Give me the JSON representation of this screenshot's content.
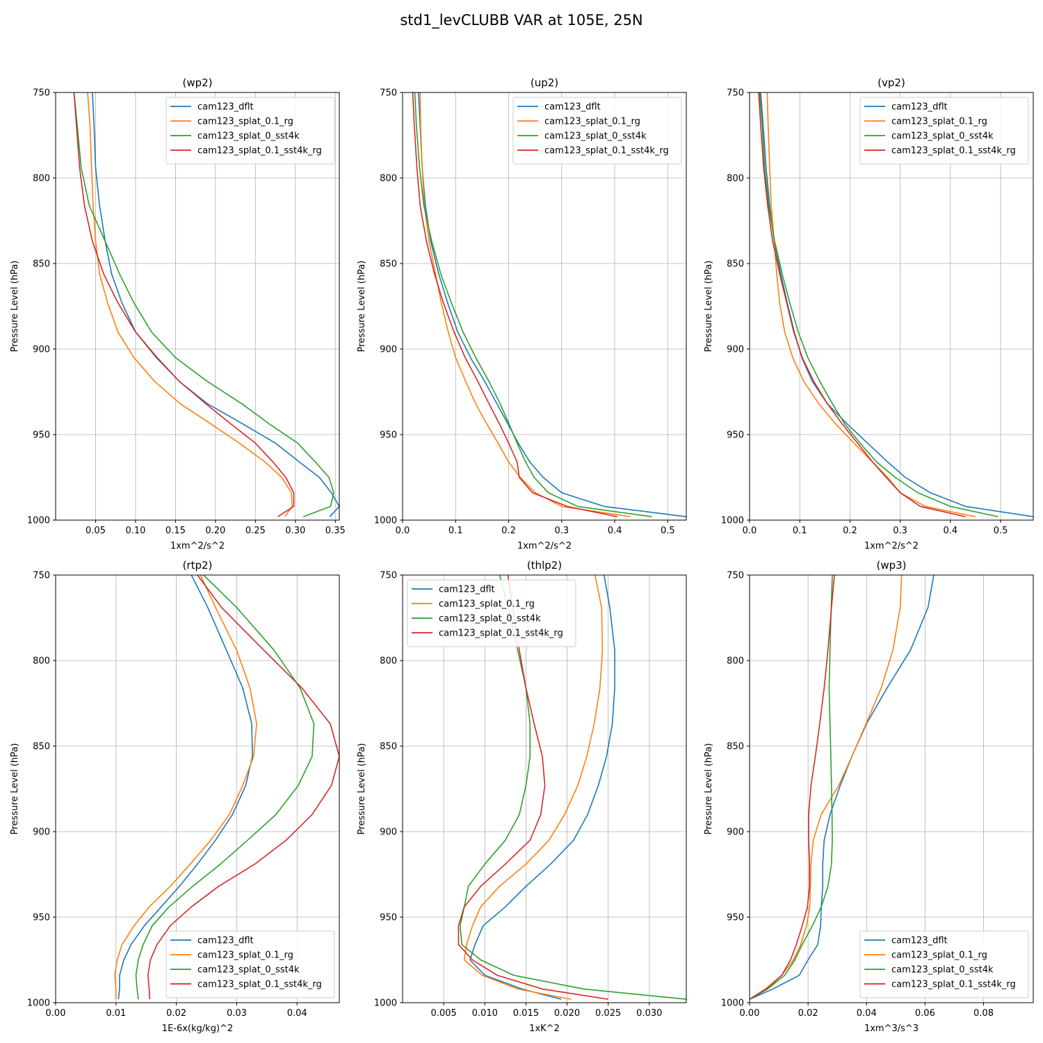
{
  "figure_title": "std1_levCLUBB VAR at 105E, 25N",
  "legend_labels": [
    "cam123_dflt",
    "cam123_splat_0.1_rg",
    "cam123_splat_0_sst4k",
    "cam123_splat_0.1_sst4k_rg"
  ],
  "colors": [
    "#1f77b4",
    "#ff7f0e",
    "#2ca02c",
    "#d62728"
  ],
  "chart_data": [
    {
      "type": "line",
      "title": "(wp2)",
      "xlabel": "1xm^2/s^2",
      "ylabel": "Pressure Level (hPa)",
      "xlim": [
        0.0,
        0.355
      ],
      "ylim": [
        1000,
        750
      ],
      "xticks": [
        0.05,
        0.1,
        0.15,
        0.2,
        0.25,
        0.3,
        0.35
      ],
      "xtick_labels": [
        "0.05",
        "0.10",
        "0.15",
        "0.20",
        "0.25",
        "0.30",
        "0.35"
      ],
      "yticks": [
        750,
        800,
        850,
        900,
        950,
        1000
      ],
      "ytick_labels": [
        "750",
        "800",
        "850",
        "900",
        "950",
        "1000"
      ],
      "legend_loc": "upper right",
      "grid": true,
      "pressure": [
        750,
        769,
        794,
        816,
        837,
        856,
        873,
        890,
        905,
        919,
        932,
        944,
        955,
        966,
        975,
        984,
        992,
        998
      ],
      "series": [
        {
          "name": "cam123_dflt",
          "values": [
            0.046,
            0.048,
            0.05,
            0.055,
            0.062,
            0.07,
            0.083,
            0.1,
            0.126,
            0.155,
            0.19,
            0.235,
            0.275,
            0.305,
            0.33,
            0.345,
            0.355,
            0.343
          ]
        },
        {
          "name": "cam123_splat_0.1_rg",
          "values": [
            0.04,
            0.043,
            0.045,
            0.047,
            0.05,
            0.055,
            0.065,
            0.078,
            0.098,
            0.124,
            0.156,
            0.195,
            0.23,
            0.262,
            0.283,
            0.295,
            0.296,
            0.287
          ]
        },
        {
          "name": "cam123_splat_0_sst4k",
          "values": [
            0.023,
            0.027,
            0.032,
            0.042,
            0.062,
            0.08,
            0.098,
            0.12,
            0.15,
            0.19,
            0.233,
            0.268,
            0.303,
            0.325,
            0.342,
            0.348,
            0.344,
            0.31
          ]
        },
        {
          "name": "cam123_splat_0.1_sst4k_rg",
          "values": [
            0.023,
            0.026,
            0.03,
            0.036,
            0.046,
            0.06,
            0.078,
            0.1,
            0.127,
            0.155,
            0.188,
            0.22,
            0.25,
            0.272,
            0.288,
            0.298,
            0.298,
            0.278
          ]
        }
      ]
    },
    {
      "type": "line",
      "title": "(up2)",
      "xlabel": "1xm^2/s^2",
      "ylabel": "Pressure Level (hPa)",
      "xlim": [
        0.0,
        0.535
      ],
      "ylim": [
        1000,
        750
      ],
      "xticks": [
        0.0,
        0.1,
        0.2,
        0.3,
        0.4,
        0.5
      ],
      "xtick_labels": [
        "0.0",
        "0.1",
        "0.2",
        "0.3",
        "0.4",
        "0.5"
      ],
      "yticks": [
        750,
        800,
        850,
        900,
        950,
        1000
      ],
      "ytick_labels": [
        "750",
        "800",
        "850",
        "900",
        "950",
        "1000"
      ],
      "legend_loc": "upper right",
      "grid": true,
      "pressure": [
        750,
        769,
        794,
        816,
        837,
        856,
        873,
        890,
        905,
        919,
        932,
        944,
        955,
        966,
        975,
        984,
        992,
        998
      ],
      "series": [
        {
          "name": "cam123_dflt",
          "values": [
            0.03,
            0.033,
            0.037,
            0.043,
            0.053,
            0.068,
            0.085,
            0.104,
            0.128,
            0.155,
            0.178,
            0.199,
            0.218,
            0.24,
            0.265,
            0.3,
            0.38,
            0.535
          ]
        },
        {
          "name": "cam123_splat_0.1_rg",
          "values": [
            0.033,
            0.034,
            0.037,
            0.041,
            0.05,
            0.062,
            0.073,
            0.086,
            0.1,
            0.119,
            0.138,
            0.159,
            0.18,
            0.2,
            0.222,
            0.25,
            0.3,
            0.43
          ]
        },
        {
          "name": "cam123_splat_0_sst4k",
          "values": [
            0.023,
            0.026,
            0.032,
            0.04,
            0.055,
            0.072,
            0.092,
            0.114,
            0.138,
            0.163,
            0.184,
            0.201,
            0.216,
            0.232,
            0.248,
            0.275,
            0.33,
            0.47
          ]
        },
        {
          "name": "cam123_splat_0.1_sst4k_rg",
          "values": [
            0.019,
            0.022,
            0.027,
            0.033,
            0.045,
            0.06,
            0.077,
            0.097,
            0.118,
            0.142,
            0.163,
            0.183,
            0.2,
            0.216,
            0.22,
            0.245,
            0.31,
            0.405
          ]
        }
      ]
    },
    {
      "type": "line",
      "title": "(vp2)",
      "xlabel": "1xm^2/s^2",
      "ylabel": "Pressure Level (hPa)",
      "xlim": [
        0.0,
        0.565
      ],
      "ylim": [
        1000,
        750
      ],
      "xticks": [
        0.0,
        0.1,
        0.2,
        0.3,
        0.4,
        0.5
      ],
      "xtick_labels": [
        "0.0",
        "0.1",
        "0.2",
        "0.3",
        "0.4",
        "0.5"
      ],
      "yticks": [
        750,
        800,
        850,
        900,
        950,
        1000
      ],
      "ytick_labels": [
        "750",
        "800",
        "850",
        "900",
        "950",
        "1000"
      ],
      "legend_loc": "upper right",
      "grid": true,
      "pressure": [
        750,
        769,
        794,
        816,
        837,
        856,
        873,
        890,
        905,
        919,
        932,
        944,
        955,
        966,
        975,
        984,
        992,
        998
      ],
      "series": [
        {
          "name": "cam123_dflt",
          "values": [
            0.022,
            0.027,
            0.033,
            0.04,
            0.049,
            0.062,
            0.075,
            0.089,
            0.104,
            0.125,
            0.155,
            0.195,
            0.235,
            0.275,
            0.31,
            0.36,
            0.43,
            0.565
          ]
        },
        {
          "name": "cam123_splat_0.1_rg",
          "values": [
            0.035,
            0.037,
            0.04,
            0.043,
            0.049,
            0.054,
            0.06,
            0.07,
            0.086,
            0.108,
            0.138,
            0.172,
            0.208,
            0.245,
            0.275,
            0.3,
            0.35,
            0.45
          ]
        },
        {
          "name": "cam123_splat_0_sst4k",
          "values": [
            0.02,
            0.025,
            0.03,
            0.038,
            0.05,
            0.065,
            0.08,
            0.097,
            0.116,
            0.14,
            0.165,
            0.19,
            0.22,
            0.253,
            0.29,
            0.335,
            0.4,
            0.495
          ]
        },
        {
          "name": "cam123_splat_0.1_sst4k_rg",
          "values": [
            0.018,
            0.022,
            0.028,
            0.036,
            0.046,
            0.06,
            0.074,
            0.088,
            0.105,
            0.128,
            0.155,
            0.185,
            0.215,
            0.245,
            0.272,
            0.3,
            0.34,
            0.43
          ]
        }
      ]
    },
    {
      "type": "line",
      "title": "(rtp2)",
      "xlabel": "1E-6x(kg/kg)^2",
      "ylabel": "Pressure Level (hPa)",
      "xlim": [
        0.0,
        0.047
      ],
      "ylim": [
        1000,
        750
      ],
      "xticks": [
        0.0,
        0.01,
        0.02,
        0.03,
        0.04
      ],
      "xtick_labels": [
        "0.00",
        "0.01",
        "0.02",
        "0.03",
        "0.04"
      ],
      "yticks": [
        750,
        800,
        850,
        900,
        950,
        1000
      ],
      "ytick_labels": [
        "750",
        "800",
        "850",
        "900",
        "950",
        "1000"
      ],
      "legend_loc": "lower right",
      "grid": true,
      "pressure": [
        750,
        769,
        794,
        816,
        837,
        856,
        873,
        890,
        905,
        919,
        932,
        944,
        955,
        966,
        975,
        984,
        992,
        998
      ],
      "series": [
        {
          "name": "cam123_dflt",
          "values": [
            0.0225,
            0.0252,
            0.0283,
            0.031,
            0.0325,
            0.0326,
            0.0315,
            0.0293,
            0.0265,
            0.0235,
            0.0205,
            0.0175,
            0.0147,
            0.0125,
            0.0113,
            0.0106,
            0.0106,
            0.0104
          ]
        },
        {
          "name": "cam123_splat_0.1_rg",
          "values": [
            0.024,
            0.0265,
            0.03,
            0.0322,
            0.0333,
            0.0328,
            0.031,
            0.0288,
            0.0257,
            0.0223,
            0.019,
            0.0155,
            0.013,
            0.011,
            0.0102,
            0.0098,
            0.01,
            0.01
          ]
        },
        {
          "name": "cam123_splat_0_sst4k",
          "values": [
            0.0245,
            0.03,
            0.0362,
            0.0405,
            0.0428,
            0.0425,
            0.0402,
            0.0365,
            0.0318,
            0.0273,
            0.0227,
            0.0188,
            0.016,
            0.0145,
            0.0137,
            0.0133,
            0.0135,
            0.0137
          ]
        },
        {
          "name": "cam123_splat_0.1_sst4k_rg",
          "values": [
            0.0235,
            0.0275,
            0.0345,
            0.0408,
            0.0455,
            0.047,
            0.0457,
            0.0425,
            0.0382,
            0.033,
            0.027,
            0.0225,
            0.019,
            0.0168,
            0.0157,
            0.0153,
            0.0155,
            0.0156
          ]
        }
      ]
    },
    {
      "type": "line",
      "title": "(thlp2)",
      "xlabel": "1xK^2",
      "ylabel": "Pressure Level (hPa)",
      "xlim": [
        0.0,
        0.0345
      ],
      "ylim": [
        1000,
        750
      ],
      "xticks": [
        0.005,
        0.01,
        0.015,
        0.02,
        0.025,
        0.03
      ],
      "xtick_labels": [
        "0.005",
        "0.010",
        "0.015",
        "0.020",
        "0.025",
        "0.030"
      ],
      "yticks": [
        750,
        800,
        850,
        900,
        950,
        1000
      ],
      "ytick_labels": [
        "750",
        "800",
        "850",
        "900",
        "950",
        "1000"
      ],
      "legend_loc": "upper left",
      "grid": true,
      "pressure": [
        750,
        769,
        794,
        816,
        837,
        856,
        873,
        890,
        905,
        919,
        932,
        944,
        955,
        966,
        975,
        984,
        992,
        998
      ],
      "series": [
        {
          "name": "cam123_dflt",
          "values": [
            0.0245,
            0.0252,
            0.0258,
            0.0258,
            0.0255,
            0.0248,
            0.0238,
            0.0225,
            0.0208,
            0.018,
            0.015,
            0.0125,
            0.0098,
            0.0088,
            0.0082,
            0.01,
            0.0145,
            0.0193
          ]
        },
        {
          "name": "cam123_splat_0.1_rg",
          "values": [
            0.0234,
            0.0242,
            0.0243,
            0.024,
            0.0233,
            0.0224,
            0.0213,
            0.0197,
            0.0178,
            0.015,
            0.0118,
            0.0095,
            0.0085,
            0.0078,
            0.0075,
            0.0097,
            0.014,
            0.0205
          ]
        },
        {
          "name": "cam123_splat_0_sst4k",
          "values": [
            0.0118,
            0.0128,
            0.014,
            0.015,
            0.0155,
            0.0155,
            0.015,
            0.0142,
            0.0125,
            0.01,
            0.008,
            0.0075,
            0.007,
            0.0072,
            0.0095,
            0.0135,
            0.022,
            0.0345
          ]
        },
        {
          "name": "cam123_splat_0.1_sst4k_rg",
          "values": [
            0.0128,
            0.0134,
            0.0142,
            0.015,
            0.016,
            0.017,
            0.0173,
            0.0168,
            0.0155,
            0.0125,
            0.0095,
            0.0075,
            0.0068,
            0.0068,
            0.0085,
            0.0115,
            0.017,
            0.025
          ]
        }
      ]
    },
    {
      "type": "line",
      "title": "(wp3)",
      "xlabel": "1xm^3/s^3",
      "ylabel": "Pressure Level (hPa)",
      "xlim": [
        0.0,
        0.097
      ],
      "ylim": [
        1000,
        750
      ],
      "xticks": [
        0.0,
        0.02,
        0.04,
        0.06,
        0.08
      ],
      "xtick_labels": [
        "0.00",
        "0.02",
        "0.04",
        "0.06",
        "0.08"
      ],
      "yticks": [
        750,
        800,
        850,
        900,
        950,
        1000
      ],
      "ytick_labels": [
        "750",
        "800",
        "850",
        "900",
        "950",
        "1000"
      ],
      "legend_loc": "lower right",
      "grid": true,
      "pressure": [
        750,
        769,
        794,
        816,
        837,
        856,
        873,
        890,
        905,
        919,
        932,
        944,
        955,
        966,
        975,
        984,
        992,
        998
      ],
      "series": [
        {
          "name": "cam123_dflt",
          "values": [
            0.063,
            0.061,
            0.055,
            0.047,
            0.04,
            0.035,
            0.031,
            0.0275,
            0.0255,
            0.025,
            0.025,
            0.0245,
            0.0243,
            0.0233,
            0.02,
            0.017,
            0.008,
            0.0
          ]
        },
        {
          "name": "cam123_splat_0.1_rg",
          "values": [
            0.052,
            0.0515,
            0.049,
            0.045,
            0.0398,
            0.035,
            0.0305,
            0.0245,
            0.0218,
            0.021,
            0.0208,
            0.0206,
            0.0195,
            0.0175,
            0.015,
            0.011,
            0.006,
            0.0
          ]
        },
        {
          "name": "cam123_splat_0_sst4k",
          "values": [
            0.0283,
            0.0279,
            0.0275,
            0.0272,
            0.0275,
            0.0278,
            0.028,
            0.0282,
            0.0283,
            0.028,
            0.0268,
            0.0245,
            0.0215,
            0.018,
            0.0155,
            0.012,
            0.0062,
            0.0
          ]
        },
        {
          "name": "cam123_splat_0.1_sst4k_rg",
          "values": [
            0.029,
            0.028,
            0.0268,
            0.0255,
            0.024,
            0.0225,
            0.021,
            0.0202,
            0.0202,
            0.0205,
            0.0205,
            0.0198,
            0.018,
            0.016,
            0.014,
            0.011,
            0.0055,
            0.0
          ]
        }
      ]
    }
  ]
}
